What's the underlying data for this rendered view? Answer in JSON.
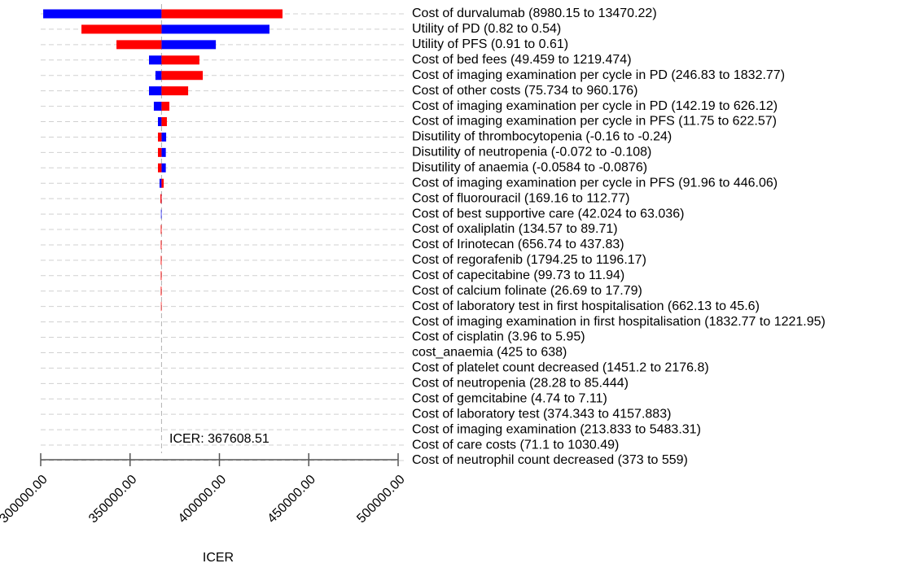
{
  "chart_data": {
    "type": "tornado",
    "categories": [
      "Cost of durvalumab (8980.15 to 13470.22)",
      "Utility of PD (0.82 to 0.54)",
      "Utility of PFS (0.91 to 0.61)",
      "Cost of bed fees (49.459 to 1219.474)",
      "Cost of imaging examination per cycle in PD (246.83 to 1832.77)",
      "Cost of other costs (75.734 to 960.176)",
      "Cost of imaging examination per cycle in PD (142.19 to 626.12)",
      "Cost of imaging examination per cycle in PFS (11.75 to 622.57)",
      "Disutility of thrombocytopenia (-0.16 to -0.24)",
      "Disutility of neutropenia (-0.072 to -0.108)",
      "Disutility of anaemia (-0.0584 to -0.0876)",
      "Cost of imaging examination per cycle in PFS (91.96 to 446.06)",
      "Cost of fluorouracil (169.16 to 112.77)",
      "Cost of best supportive care (42.024 to 63.036)",
      "Cost of oxaliplatin (134.57 to 89.71)",
      "Cost of Irinotecan (656.74 to 437.83)",
      "Cost of regorafenib (1794.25 to 1196.17)",
      "Cost of capecitabine (99.73 to 11.94)",
      "Cost of calcium folinate (26.69 to 17.79)",
      "Cost of laboratory test in first hospitalisation (662.13 to 45.6)",
      "Cost of imaging examination in first hospitalisation (1832.77 to 1221.95)",
      "Cost of cisplatin (3.96 to 5.95)",
      "cost_anaemia (425 to 638)",
      "Cost of platelet count decreased (1451.2 to 2176.8)",
      "Cost of neutropenia (28.28 to 85.444)",
      "Cost of gemcitabine (4.74 to 7.11)",
      "Cost of laboratory test (374.343 to 4157.883)",
      "Cost of imaging examination (213.833 to 5483.31)",
      "Cost of care costs (71.1 to 1030.49)",
      "Cost of neutrophil count decreased (373 to 559)"
    ],
    "series": [
      {
        "color": "#0000ff",
        "values": [
          301400,
          428000,
          398000,
          360600,
          364200,
          360600,
          363300,
          365600,
          370200,
          370000,
          370000,
          366500,
          367200,
          367300,
          367608.51,
          367608.51,
          367608.51,
          367608.51,
          367608.51,
          367608.51,
          367608.51,
          367608.51,
          367608.51,
          367608.51,
          367608.51,
          367608.51,
          367608.51,
          367608.51,
          367608.51,
          367608.51
        ]
      },
      {
        "color": "#ff0000",
        "values": [
          435300,
          322800,
          342400,
          388800,
          390700,
          382500,
          372000,
          370600,
          365600,
          365600,
          365600,
          368800,
          367000,
          367608.51,
          367200,
          367200,
          367200,
          367200,
          367200,
          367300,
          367608.51,
          367608.51,
          367608.51,
          367608.51,
          367608.51,
          367608.51,
          367608.51,
          367608.51,
          367608.51,
          367608.51
        ]
      }
    ],
    "baseline": 367608.51,
    "annotation": "ICER: 367608.51",
    "xlabel": "ICER",
    "xlim": [
      300000,
      500000
    ],
    "xticks": [
      {
        "value": 300000,
        "label": "300000.00"
      },
      {
        "value": 350000,
        "label": "350000.00"
      },
      {
        "value": 400000,
        "label": "400000.00"
      },
      {
        "value": 450000,
        "label": "450000.00"
      },
      {
        "value": 500000,
        "label": "500000.00"
      }
    ]
  }
}
